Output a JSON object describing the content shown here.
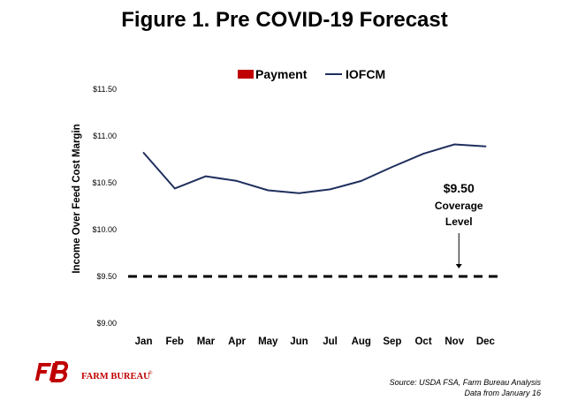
{
  "chart_data": {
    "type": "line",
    "title": "Figure 1. Pre COVID-19 Forecast",
    "ylabel": "Income Over Feed Cost Margin",
    "xlabel": "",
    "categories": [
      "Jan",
      "Feb",
      "Mar",
      "Apr",
      "May",
      "Jun",
      "Jul",
      "Aug",
      "Sep",
      "Oct",
      "Nov",
      "Dec"
    ],
    "ylim": [
      9.0,
      11.5
    ],
    "yticks": [
      9.0,
      9.5,
      10.0,
      10.5,
      11.0,
      11.5
    ],
    "ytick_labels": [
      "$9.00",
      "$9.50",
      "$10.00",
      "$10.50",
      "$11.00",
      "$11.50"
    ],
    "series": [
      {
        "name": "IOFCM",
        "values": [
          10.82,
          10.44,
          10.57,
          10.52,
          10.42,
          10.39,
          10.43,
          10.52,
          10.67,
          10.81,
          10.91,
          10.89
        ]
      }
    ],
    "legend": {
      "position": "top",
      "items": [
        {
          "label": "Payment",
          "marker": "box",
          "color": "#c00000"
        },
        {
          "label": "IOFCM",
          "marker": "line",
          "color": "#1f2f5e"
        }
      ]
    },
    "reference_line": {
      "value": 9.5,
      "style": "dashed",
      "color": "#000000"
    },
    "annotation": {
      "lines": [
        "$9.50",
        "Coverage",
        "Level"
      ],
      "arrow_at_category": "Nov",
      "arrow_target_value": 9.5
    },
    "grid": false,
    "colors": {
      "line": "#1f2f5e",
      "payment": "#c00000",
      "reference": "#000000"
    }
  },
  "source_lines": [
    "Source: USDA FSA, Farm Bureau Analysis",
    "Data from January 16"
  ],
  "logo": {
    "mark": "FB",
    "text": "FARM BUREAU",
    "registered": "®",
    "color": "#c00000"
  }
}
